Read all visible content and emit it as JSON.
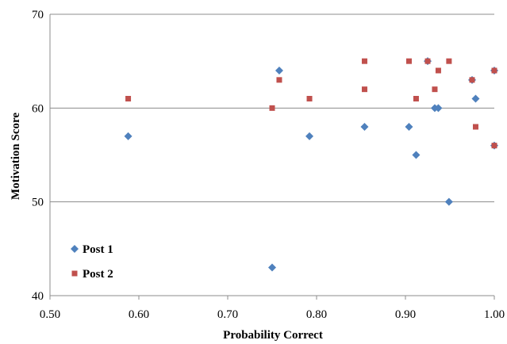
{
  "chart_data": {
    "type": "scatter",
    "title": "",
    "xlabel": "Probability  Correct",
    "ylabel": "Motivation Score",
    "xlim": [
      0.5,
      1.0
    ],
    "ylim": [
      40,
      70
    ],
    "x_ticks": [
      "0.50",
      "0.60",
      "0.70",
      "0.80",
      "0.90",
      "1.00"
    ],
    "y_ticks": [
      "40",
      "50",
      "60",
      "70"
    ],
    "grid": "horizontal",
    "legend": "bottom-left",
    "series": [
      {
        "name": "Post 1",
        "marker": "diamond",
        "color": "#4f81bd",
        "points": [
          [
            0.588,
            57
          ],
          [
            0.75,
            43
          ],
          [
            0.758,
            64
          ],
          [
            0.792,
            57
          ],
          [
            0.854,
            58
          ],
          [
            0.904,
            58
          ],
          [
            0.912,
            55
          ],
          [
            0.925,
            65
          ],
          [
            0.933,
            60
          ],
          [
            0.937,
            60
          ],
          [
            0.949,
            50
          ],
          [
            0.975,
            63
          ],
          [
            0.979,
            61
          ],
          [
            1.0,
            64
          ],
          [
            1.0,
            56
          ]
        ]
      },
      {
        "name": "Post 2",
        "marker": "square",
        "color": "#c0504d",
        "points": [
          [
            0.588,
            61
          ],
          [
            0.75,
            60
          ],
          [
            0.758,
            63
          ],
          [
            0.792,
            61
          ],
          [
            0.854,
            65
          ],
          [
            0.854,
            62
          ],
          [
            0.904,
            65
          ],
          [
            0.912,
            61
          ],
          [
            0.925,
            65
          ],
          [
            0.933,
            62
          ],
          [
            0.937,
            64
          ],
          [
            0.949,
            65
          ],
          [
            0.975,
            63
          ],
          [
            0.979,
            58
          ],
          [
            1.0,
            64
          ],
          [
            1.0,
            56
          ]
        ]
      }
    ]
  }
}
